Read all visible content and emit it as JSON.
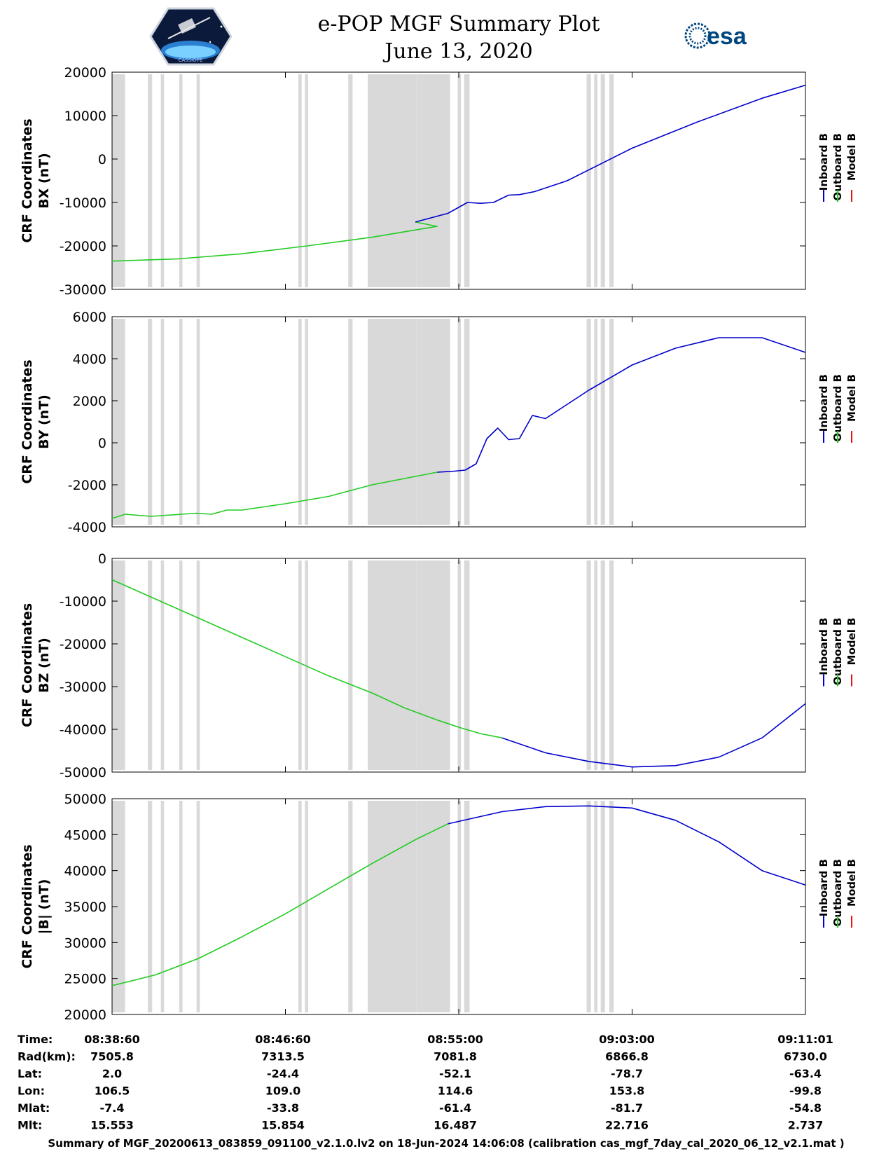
{
  "title": "e-POP MGF Summary Plot",
  "subtitle": "June 13, 2020",
  "logos": {
    "left": "CASSIOPE",
    "right": "esa"
  },
  "colors": {
    "inboard": "#0000cc",
    "outboard": "#22cc22",
    "model": "#ee1111",
    "gap": "#d9d9d9"
  },
  "legend": [
    "Inboard B",
    "Outboard B",
    "Model B"
  ],
  "chart_data": [
    {
      "type": "line",
      "ylabel": [
        "CRF Coordinates",
        "BX (nT)"
      ],
      "ylim": [
        -30000,
        20000
      ],
      "yticks": [
        "20000",
        "10000",
        "0",
        "-10000",
        "-20000",
        "-30000"
      ],
      "ytick_values": [
        20000,
        10000,
        0,
        -10000,
        -20000,
        -30000
      ],
      "xlim": [
        0,
        32
      ],
      "series": [
        {
          "name": "Outboard B",
          "x": [
            0,
            3,
            6,
            9,
            12,
            15,
            14
          ],
          "y": [
            -23500,
            -23000,
            -21800,
            -20000,
            -18000,
            -15500,
            -14500
          ]
        },
        {
          "name": "Inboard B",
          "x": [
            14,
            15.5,
            16.4,
            17.0,
            17.6,
            18.3,
            18.8,
            19.5,
            21,
            24,
            27,
            30,
            32
          ],
          "y": [
            -14500,
            -12500,
            -10000,
            -10200,
            -10000,
            -8300,
            -8200,
            -7500,
            -5000,
            2500,
            8500,
            14000,
            17000
          ]
        }
      ]
    },
    {
      "type": "line",
      "ylabel": [
        "CRF Coordinates",
        "BY (nT)"
      ],
      "ylim": [
        -4000,
        6000
      ],
      "yticks": [
        "6000",
        "4000",
        "2000",
        "0",
        "-2000",
        "-4000"
      ],
      "ytick_values": [
        6000,
        4000,
        2000,
        0,
        -2000,
        -4000
      ],
      "xlim": [
        0,
        32
      ],
      "series": [
        {
          "name": "Outboard B",
          "x": [
            0,
            0.6,
            1.2,
            1.8,
            2.5,
            3.2,
            3.9,
            4.6,
            5.3,
            6.0,
            8,
            10,
            12,
            14,
            15
          ],
          "y": [
            -3600,
            -3400,
            -3450,
            -3500,
            -3450,
            -3400,
            -3350,
            -3400,
            -3200,
            -3200,
            -2900,
            -2550,
            -2000,
            -1600,
            -1400
          ]
        },
        {
          "name": "Inboard B",
          "x": [
            15,
            15.8,
            16.3,
            16.8,
            17.3,
            17.8,
            18.3,
            18.8,
            19.4,
            20,
            22,
            24,
            26,
            28,
            30,
            32
          ],
          "y": [
            -1400,
            -1350,
            -1300,
            -1000,
            200,
            700,
            150,
            200,
            1300,
            1150,
            2500,
            3700,
            4500,
            5000,
            5000,
            4300
          ]
        }
      ]
    },
    {
      "type": "line",
      "ylabel": [
        "CRF Coordinates",
        "BZ (nT)"
      ],
      "ylim": [
        -50000,
        0
      ],
      "yticks": [
        "0",
        "-10000",
        "-20000",
        "-30000",
        "-40000",
        "-50000"
      ],
      "ytick_values": [
        0,
        -10000,
        -20000,
        -30000,
        -40000,
        -50000
      ],
      "xlim": [
        0,
        32
      ],
      "series": [
        {
          "name": "Outboard B",
          "x": [
            0,
            2,
            4,
            6,
            8,
            10,
            12,
            13.5,
            15,
            16,
            17,
            18
          ],
          "y": [
            -5000,
            -9500,
            -14000,
            -18500,
            -23000,
            -27500,
            -31500,
            -35000,
            -37800,
            -39500,
            -41000,
            -42000
          ]
        },
        {
          "name": "Inboard B",
          "x": [
            18,
            20,
            22,
            24,
            26,
            28,
            30,
            32
          ],
          "y": [
            -42000,
            -45500,
            -47500,
            -48800,
            -48500,
            -46500,
            -42000,
            -34000
          ]
        }
      ]
    },
    {
      "type": "line",
      "ylabel": [
        "CRF Coordinates",
        "|B| (nT)"
      ],
      "ylim": [
        20000,
        50000
      ],
      "yticks": [
        "50000",
        "45000",
        "40000",
        "35000",
        "30000",
        "25000",
        "20000"
      ],
      "ytick_values": [
        50000,
        45000,
        40000,
        35000,
        30000,
        25000,
        20000
      ],
      "xlim": [
        0,
        32
      ],
      "series": [
        {
          "name": "Outboard B",
          "x": [
            0,
            2,
            4,
            6,
            8,
            10,
            12,
            14,
            15.5
          ],
          "y": [
            24000,
            25500,
            27800,
            30800,
            34000,
            37500,
            41000,
            44300,
            46500
          ]
        },
        {
          "name": "Inboard B",
          "x": [
            15.5,
            18,
            20,
            22,
            24,
            26,
            28,
            30,
            32
          ],
          "y": [
            46500,
            48200,
            48900,
            49000,
            48700,
            47000,
            44000,
            40000,
            38000
          ]
        }
      ]
    }
  ],
  "gap_intervals": [
    [
      0,
      0.6
    ],
    [
      1.65,
      1.85
    ],
    [
      2.25,
      2.4
    ],
    [
      3.1,
      3.25
    ],
    [
      3.9,
      4.05
    ],
    [
      8.6,
      8.75
    ],
    [
      8.9,
      9.05
    ],
    [
      10.9,
      11.1
    ],
    [
      11.8,
      14.05
    ],
    [
      14.05,
      15.6
    ],
    [
      15.95,
      16.1
    ],
    [
      16.25,
      16.5
    ],
    [
      21.9,
      22.1
    ],
    [
      22.25,
      22.4
    ],
    [
      22.55,
      22.75
    ],
    [
      22.95,
      23.15
    ]
  ],
  "x_axis": {
    "ticks": [
      {
        "x": 8,
        "label": "08:46:60"
      },
      {
        "x": 16,
        "label": "08:55:00"
      },
      {
        "x": 24,
        "label": "09:03:00"
      }
    ]
  },
  "info_table": {
    "rows": [
      {
        "label": "Time:",
        "values": [
          "08:38:60",
          "08:46:60",
          "08:55:00",
          "09:03:00",
          "09:11:01"
        ]
      },
      {
        "label": "Rad(km):",
        "values": [
          "7505.8",
          "7313.5",
          "7081.8",
          "6866.8",
          "6730.0"
        ]
      },
      {
        "label": "Lat:",
        "values": [
          "2.0",
          "-24.4",
          "-52.1",
          "-78.7",
          "-63.4"
        ]
      },
      {
        "label": "Lon:",
        "values": [
          "106.5",
          "109.0",
          "114.6",
          "153.8",
          "-99.8"
        ]
      },
      {
        "label": "Mlat:",
        "values": [
          "-7.4",
          "-33.8",
          "-61.4",
          "-81.7",
          "-54.8"
        ]
      },
      {
        "label": "Mlt:",
        "values": [
          "15.553",
          "15.854",
          "16.487",
          "22.716",
          "2.737"
        ]
      }
    ]
  },
  "footer": "Summary of MGF_20200613_083859_091100_v2.1.0.lv2 on 18-Jun-2024 14:06:08 (calibration cas_mgf_7day_cal_2020_06_12_v2.1.mat )"
}
